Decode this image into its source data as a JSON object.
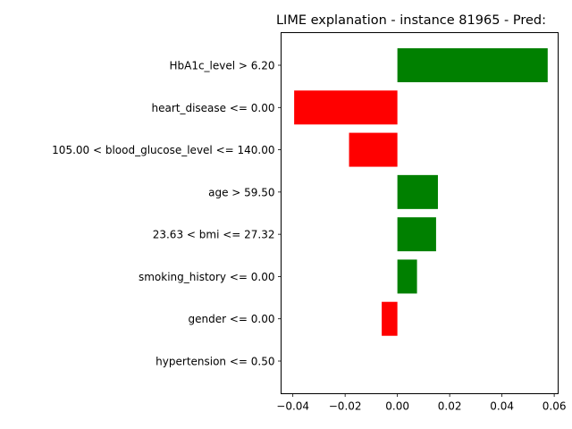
{
  "chart_data": {
    "type": "bar",
    "orientation": "horizontal",
    "title": "LIME explanation - instance 81965 - Pred:",
    "xlabel": "",
    "ylabel": "",
    "xlim": [
      -0.0445,
      0.0615
    ],
    "xticks": [
      -0.04,
      -0.02,
      0.0,
      0.02,
      0.04,
      0.06
    ],
    "xtick_labels": [
      "−0.04",
      "−0.02",
      "0.00",
      "0.02",
      "0.04",
      "0.06"
    ],
    "grid": false,
    "legend": "none",
    "categories": [
      "HbA1c_level > 6.20",
      "heart_disease <= 0.00",
      "105.00 < blood_glucose_level <= 140.00",
      "age > 59.50",
      "23.63 < bmi <= 27.32",
      "smoking_history <= 0.00",
      "gender <= 0.00",
      "hypertension <= 0.50"
    ],
    "values": [
      0.0575,
      -0.0395,
      -0.0185,
      0.0155,
      0.0148,
      0.0075,
      -0.006,
      0.0
    ],
    "colors": {
      "positive": "#008000",
      "negative": "#ff0000"
    }
  }
}
